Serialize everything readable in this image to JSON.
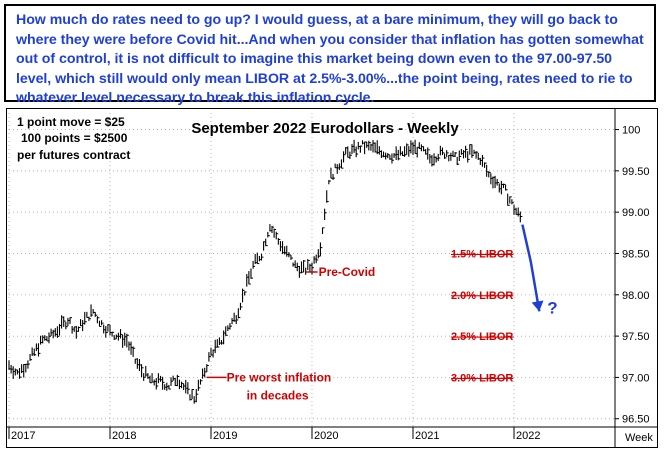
{
  "note": {
    "text": "How much do rates need to go up? I would guess, at a bare minimum, they will go back to where they were before Covid hit...And when you consider that inflation has gotten somewhat out of control, it is not difficult to imagine this market being down even to the 97.00-97.50 level, which still would only mean LIBOR at 2.5%-3.00%...the point being, rates need to rie to whatever level necessary to break this inflation cycle."
  },
  "colors": {
    "note_text": "#1f3fd6",
    "annotation_red": "#d00000",
    "projection_arrow": "#1f3fd6",
    "price_bars": "#000000"
  },
  "contract_info": {
    "line1": "1 point move = $25",
    "line2": "100 points = $2500",
    "line3": "per futures contract"
  },
  "chart_data": {
    "type": "line",
    "title": "September 2022 Eurodollars - Weekly",
    "xlabel": "",
    "ylabel": "",
    "x_unit_label": "Week",
    "xlim": [
      "2017-01",
      "2022-12"
    ],
    "ylim": [
      96.4,
      100.2
    ],
    "x_ticks": [
      "2017",
      "2018",
      "2019",
      "2020",
      "2021",
      "2022"
    ],
    "y_ticks": [
      "100",
      "99.50",
      "99.00",
      "98.50",
      "98.00",
      "97.50",
      "97.00",
      "96.50"
    ],
    "grid": true,
    "series": [
      {
        "style": "weekly-bars",
        "points": [
          [
            "2017-01",
            97.15
          ],
          [
            "2017-02",
            97.05
          ],
          [
            "2017-03",
            97.15
          ],
          [
            "2017-04",
            97.3
          ],
          [
            "2017-05",
            97.45
          ],
          [
            "2017-06",
            97.5
          ],
          [
            "2017-07",
            97.6
          ],
          [
            "2017-08",
            97.7
          ],
          [
            "2017-09",
            97.55
          ],
          [
            "2017-10",
            97.7
          ],
          [
            "2017-11",
            97.8
          ],
          [
            "2017-12",
            97.65
          ],
          [
            "2018-01",
            97.55
          ],
          [
            "2018-02",
            97.5
          ],
          [
            "2018-03",
            97.45
          ],
          [
            "2018-04",
            97.2
          ],
          [
            "2018-05",
            97.05
          ],
          [
            "2018-06",
            96.95
          ],
          [
            "2018-07",
            96.95
          ],
          [
            "2018-08",
            96.9
          ],
          [
            "2018-09",
            97.0
          ],
          [
            "2018-10",
            96.85
          ],
          [
            "2018-11",
            96.75
          ],
          [
            "2018-12",
            97.0
          ],
          [
            "2019-01",
            97.3
          ],
          [
            "2019-02",
            97.4
          ],
          [
            "2019-03",
            97.6
          ],
          [
            "2019-04",
            97.75
          ],
          [
            "2019-05",
            98.05
          ],
          [
            "2019-06",
            98.35
          ],
          [
            "2019-07",
            98.5
          ],
          [
            "2019-08",
            98.85
          ],
          [
            "2019-09",
            98.65
          ],
          [
            "2019-10",
            98.5
          ],
          [
            "2019-11",
            98.35
          ],
          [
            "2019-12",
            98.3
          ],
          [
            "2020-01",
            98.35
          ],
          [
            "2020-02",
            98.6
          ],
          [
            "2020-03",
            99.4
          ],
          [
            "2020-04",
            99.55
          ],
          [
            "2020-05",
            99.7
          ],
          [
            "2020-06",
            99.75
          ],
          [
            "2020-07",
            99.8
          ],
          [
            "2020-08",
            99.78
          ],
          [
            "2020-09",
            99.75
          ],
          [
            "2020-10",
            99.7
          ],
          [
            "2020-11",
            99.68
          ],
          [
            "2020-12",
            99.72
          ],
          [
            "2021-01",
            99.78
          ],
          [
            "2021-02",
            99.75
          ],
          [
            "2021-03",
            99.65
          ],
          [
            "2021-04",
            99.7
          ],
          [
            "2021-05",
            99.72
          ],
          [
            "2021-06",
            99.65
          ],
          [
            "2021-07",
            99.7
          ],
          [
            "2021-08",
            99.72
          ],
          [
            "2021-09",
            99.65
          ],
          [
            "2021-10",
            99.45
          ],
          [
            "2021-11",
            99.35
          ],
          [
            "2021-12",
            99.25
          ],
          [
            "2022-01",
            99.05
          ],
          [
            "2022-02",
            98.9
          ]
        ]
      }
    ],
    "projection": [
      [
        "2022-02",
        98.85
      ],
      [
        "2022-03",
        98.4
      ],
      [
        "2022-04",
        97.8
      ]
    ],
    "projection_label": "?",
    "libor_levels": [
      {
        "label": "1.5% LIBOR",
        "y": 98.5
      },
      {
        "label": "2.0% LIBOR",
        "y": 98.0
      },
      {
        "label": "2.5% LIBOR",
        "y": 97.5
      },
      {
        "label": "3.0% LIBOR",
        "y": 97.0
      }
    ],
    "annotations": [
      {
        "label": "Pre-Covid",
        "x": "2019-12",
        "y": 98.3
      },
      {
        "label_line1": "Pre worst inflation",
        "label_line2": "in decades",
        "x": "2018-12",
        "y": 97.0
      }
    ]
  }
}
